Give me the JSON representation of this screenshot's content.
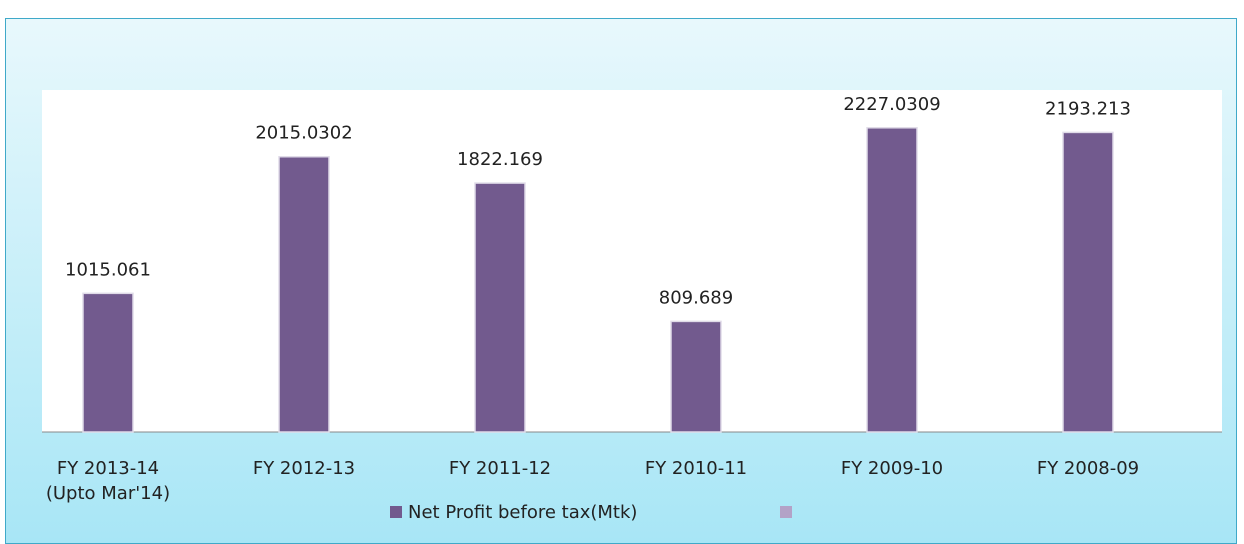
{
  "chart_data": {
    "type": "bar",
    "categories": [
      "FY 2013-14\n(Upto Mar'14)",
      "FY 2012-13",
      "FY 2011-12",
      "FY 2010-11",
      "FY 2009-10",
      "FY 2008-09"
    ],
    "series": [
      {
        "name": "Net Profit before tax(Mtk)",
        "color": "#725a8e",
        "values": [
          1015.061,
          2015.0302,
          1822.169,
          809.689,
          2227.0309,
          2193.213
        ]
      }
    ],
    "ylim": [
      0,
      2500
    ],
    "grid": false,
    "legend": "bottom"
  }
}
